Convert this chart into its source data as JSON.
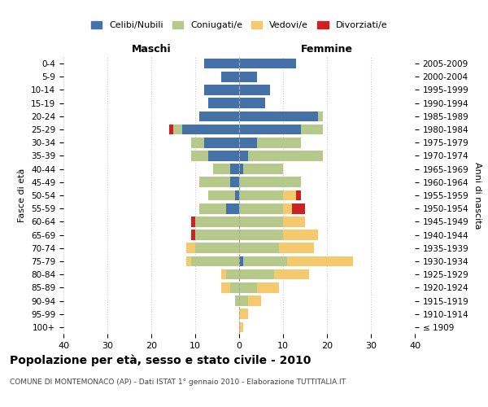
{
  "age_groups": [
    "100+",
    "95-99",
    "90-94",
    "85-89",
    "80-84",
    "75-79",
    "70-74",
    "65-69",
    "60-64",
    "55-59",
    "50-54",
    "45-49",
    "40-44",
    "35-39",
    "30-34",
    "25-29",
    "20-24",
    "15-19",
    "10-14",
    "5-9",
    "0-4"
  ],
  "birth_years": [
    "≤ 1909",
    "1910-1914",
    "1915-1919",
    "1920-1924",
    "1925-1929",
    "1930-1934",
    "1935-1939",
    "1940-1944",
    "1945-1949",
    "1950-1954",
    "1955-1959",
    "1960-1964",
    "1965-1969",
    "1970-1974",
    "1975-1979",
    "1980-1984",
    "1985-1989",
    "1990-1994",
    "1995-1999",
    "2000-2004",
    "2005-2009"
  ],
  "male_celibi": [
    0,
    0,
    0,
    0,
    0,
    0,
    0,
    0,
    0,
    3,
    1,
    2,
    2,
    7,
    8,
    13,
    9,
    7,
    8,
    4,
    8
  ],
  "male_coniugati": [
    0,
    0,
    1,
    2,
    3,
    11,
    10,
    10,
    10,
    6,
    6,
    7,
    4,
    4,
    3,
    2,
    0,
    0,
    0,
    0,
    0
  ],
  "male_vedovi": [
    0,
    0,
    0,
    2,
    1,
    1,
    2,
    0,
    0,
    0,
    0,
    0,
    0,
    0,
    0,
    0,
    0,
    0,
    0,
    0,
    0
  ],
  "male_divorziati": [
    0,
    0,
    0,
    0,
    0,
    0,
    0,
    1,
    1,
    0,
    0,
    0,
    0,
    0,
    0,
    1,
    0,
    0,
    0,
    0,
    0
  ],
  "female_celibi": [
    0,
    0,
    0,
    0,
    0,
    1,
    0,
    0,
    0,
    0,
    0,
    0,
    1,
    2,
    4,
    14,
    18,
    6,
    7,
    4,
    13
  ],
  "female_coniugati": [
    0,
    0,
    2,
    4,
    8,
    10,
    9,
    10,
    10,
    10,
    10,
    14,
    9,
    17,
    10,
    5,
    1,
    0,
    0,
    0,
    0
  ],
  "female_vedovi": [
    1,
    2,
    3,
    5,
    8,
    15,
    8,
    8,
    5,
    2,
    3,
    0,
    0,
    0,
    0,
    0,
    0,
    0,
    0,
    0,
    0
  ],
  "female_divorziati": [
    0,
    0,
    0,
    0,
    0,
    0,
    0,
    0,
    0,
    3,
    1,
    0,
    0,
    0,
    0,
    0,
    0,
    0,
    0,
    0,
    0
  ],
  "color_celibi": "#4472a8",
  "color_coniugati": "#b5c98a",
  "color_vedovi": "#f5c96e",
  "color_divorziati": "#cc2222",
  "xlim": 40,
  "title": "Popolazione per età, sesso e stato civile - 2010",
  "subtitle": "COMUNE DI MONTEMONACO (AP) - Dati ISTAT 1° gennaio 2010 - Elaborazione TUTTITALIA.IT",
  "ylabel_left": "Fasce di età",
  "ylabel_right": "Anni di nascita",
  "xlabel_left": "Maschi",
  "xlabel_right": "Femmine",
  "bg_color": "#ffffff",
  "grid_color": "#cccccc"
}
